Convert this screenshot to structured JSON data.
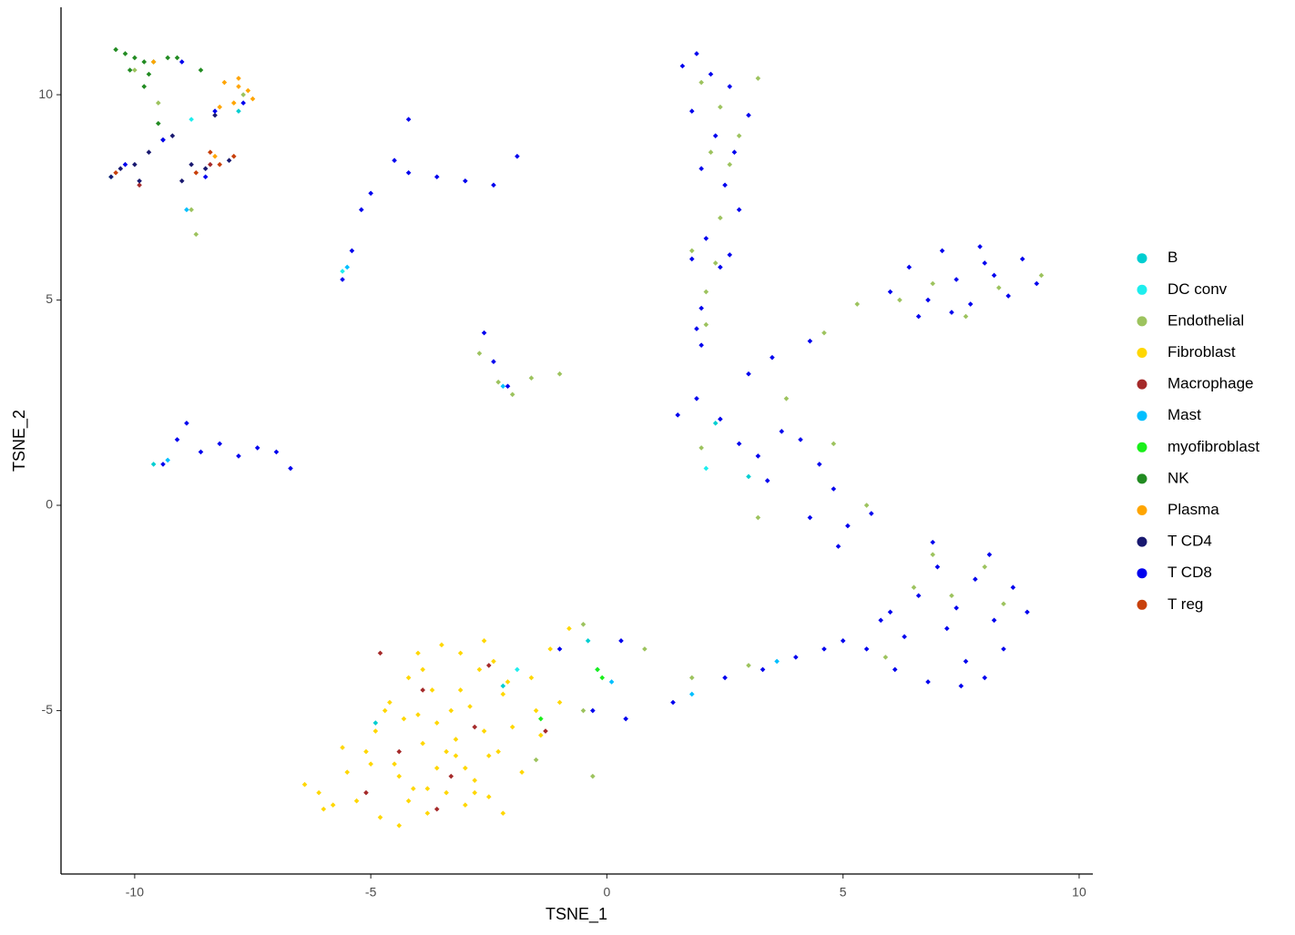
{
  "chart_data": {
    "type": "scatter",
    "x_label": "TSNE_1",
    "y_label": "TSNE_2",
    "xlim": [
      -11.56,
      10.29
    ],
    "ylim": [
      -8.98,
      12.13
    ],
    "xticks": [
      -10,
      -5,
      0,
      5,
      10
    ],
    "yticks": [
      -5,
      0,
      5,
      10
    ],
    "grid": false,
    "legend": "right",
    "series": [
      {
        "name": "B",
        "color": "#00CED1",
        "x": [
          -10.5,
          -9.6,
          -7.8,
          -0.4,
          3.0,
          -0.2,
          2.3,
          -2.2,
          -4.9
        ],
        "y": [
          8.0,
          1.0,
          9.6,
          -3.3,
          0.7,
          -4.0,
          2.0,
          -4.4,
          -5.3
        ]
      },
      {
        "name": "DC conv",
        "color": "#1EEEEE",
        "x": [
          -8.8,
          -1.9,
          2.1,
          -5.6
        ],
        "y": [
          9.4,
          -4.0,
          0.9,
          5.7
        ]
      },
      {
        "name": "Endothelial",
        "color": "#9DC35E",
        "x": [
          2.0,
          2.4,
          2.8,
          2.2,
          2.6,
          2.4,
          1.8,
          2.3,
          2.1,
          2.1,
          3.2,
          6.2,
          6.9,
          7.6,
          8.3,
          9.2,
          5.3,
          4.6,
          6.9,
          7.3,
          8.0,
          8.4,
          6.5,
          5.9,
          -2.7,
          -2.3,
          -2.0,
          -1.6,
          -1.0,
          1.8,
          3.0,
          0.8,
          -0.5,
          -1.5,
          -0.3,
          -0.5,
          -10.0,
          -9.5,
          -8.7,
          -8.8,
          -7.7,
          2.0,
          3.8,
          4.8,
          5.5,
          3.2
        ],
        "y": [
          10.3,
          9.7,
          9.0,
          8.6,
          8.3,
          7.0,
          6.2,
          5.9,
          5.2,
          4.4,
          10.4,
          5.0,
          5.4,
          4.6,
          5.3,
          5.6,
          4.9,
          4.2,
          -1.2,
          -2.2,
          -1.5,
          -2.4,
          -2.0,
          -3.7,
          3.7,
          3.0,
          2.7,
          3.1,
          3.2,
          -4.2,
          -3.9,
          -3.5,
          -5.0,
          -6.2,
          -6.6,
          -2.9,
          10.6,
          9.8,
          6.6,
          7.2,
          10.0,
          1.4,
          2.6,
          1.5,
          0.0,
          -0.3
        ]
      },
      {
        "name": "Fibroblast",
        "color": "#FFD700",
        "x": [
          -6.4,
          -6.1,
          -5.8,
          -5.5,
          -5.3,
          -5.1,
          -4.9,
          -4.8,
          -4.6,
          -4.5,
          -4.4,
          -4.3,
          -4.2,
          -4.1,
          -4.0,
          -3.9,
          -3.8,
          -3.7,
          -3.6,
          -3.5,
          -3.4,
          -3.3,
          -3.2,
          -3.1,
          -3.0,
          -2.9,
          -2.8,
          -2.7,
          -2.6,
          -2.5,
          -2.4,
          -2.3,
          -2.2,
          -2.0,
          -1.8,
          -1.6,
          -1.4,
          -1.2,
          -1.0,
          -0.8,
          -5.0,
          -4.7,
          -4.2,
          -3.9,
          -3.6,
          -3.4,
          -3.1,
          -2.8,
          -2.5,
          -2.1,
          -4.4,
          -3.8,
          -3.2,
          -2.6,
          -5.6,
          -6.0,
          -4.0,
          -3.0,
          -2.2,
          -1.5
        ],
        "y": [
          -6.8,
          -7.0,
          -7.3,
          -6.5,
          -7.2,
          -6.0,
          -5.5,
          -7.6,
          -4.8,
          -6.3,
          -7.8,
          -5.2,
          -4.2,
          -6.9,
          -3.6,
          -5.8,
          -7.5,
          -4.5,
          -6.4,
          -3.4,
          -7.0,
          -5.0,
          -6.1,
          -3.6,
          -7.3,
          -4.9,
          -6.7,
          -4.0,
          -5.5,
          -7.1,
          -3.8,
          -6.0,
          -4.6,
          -5.4,
          -6.5,
          -4.2,
          -5.6,
          -3.5,
          -4.8,
          -3.0,
          -6.3,
          -5.0,
          -7.2,
          -4.0,
          -5.3,
          -6.0,
          -4.5,
          -7.0,
          -6.1,
          -4.3,
          -6.6,
          -6.9,
          -5.7,
          -3.3,
          -5.9,
          -7.4,
          -5.1,
          -6.4,
          -7.5,
          -5.0
        ]
      },
      {
        "name": "Macrophage",
        "color": "#A52A2A",
        "x": [
          -5.1,
          -4.4,
          -3.9,
          -3.3,
          -2.8,
          -2.5,
          -4.8,
          -3.6,
          -1.3,
          -8.4,
          -9.9
        ],
        "y": [
          -7.0,
          -6.0,
          -4.5,
          -6.6,
          -5.4,
          -3.9,
          -3.6,
          -7.4,
          -5.5,
          8.3,
          7.8
        ]
      },
      {
        "name": "Mast",
        "color": "#00BFFF",
        "x": [
          -8.9,
          -5.5,
          -2.2,
          1.8,
          3.6,
          -9.3,
          0.1
        ],
        "y": [
          7.2,
          5.8,
          2.9,
          -4.6,
          -3.8,
          1.1,
          -4.3
        ]
      },
      {
        "name": "myofibroblast",
        "color": "#1AEF1A",
        "x": [
          -0.2,
          -0.1,
          -1.4
        ],
        "y": [
          -4.0,
          -4.2,
          -5.2
        ]
      },
      {
        "name": "NK",
        "color": "#228B22",
        "x": [
          -10.4,
          -10.2,
          -10.0,
          -9.8,
          -9.6,
          -9.3,
          -9.1,
          -10.1,
          -9.7,
          -8.6,
          -9.5,
          -9.8
        ],
        "y": [
          11.1,
          11.0,
          10.9,
          10.8,
          10.8,
          10.9,
          10.9,
          10.6,
          10.5,
          10.6,
          9.3,
          10.2
        ]
      },
      {
        "name": "Plasma",
        "color": "#FFA500",
        "x": [
          -8.1,
          -7.8,
          -7.6,
          -7.9,
          -8.2,
          -7.5,
          -9.6,
          -8.3,
          -7.8
        ],
        "y": [
          10.3,
          10.4,
          10.1,
          9.8,
          9.7,
          9.9,
          10.8,
          8.5,
          10.2
        ]
      },
      {
        "name": "T CD4",
        "color": "#191970",
        "x": [
          -10.5,
          -10.3,
          -10.0,
          -9.7,
          -9.4,
          -9.2,
          -8.8,
          -8.5,
          -8.0,
          -9.9,
          -8.3,
          -9.0
        ],
        "y": [
          8.0,
          8.2,
          8.3,
          8.6,
          8.9,
          9.0,
          8.3,
          8.2,
          8.4,
          7.9,
          9.5,
          7.9
        ]
      },
      {
        "name": "T CD8",
        "color": "#0000EE",
        "x": [
          1.6,
          1.9,
          2.2,
          2.6,
          3.0,
          1.8,
          2.3,
          2.7,
          2.0,
          2.5,
          2.8,
          2.1,
          1.8,
          2.4,
          2.6,
          2.0,
          2.0,
          1.9,
          6.0,
          6.4,
          6.8,
          7.1,
          7.4,
          7.7,
          7.9,
          8.2,
          8.5,
          8.8,
          9.1,
          6.6,
          7.3,
          8.0,
          5.5,
          5.8,
          6.1,
          6.3,
          6.6,
          6.8,
          7.0,
          7.2,
          7.4,
          7.6,
          7.8,
          8.0,
          8.2,
          8.4,
          8.6,
          8.9,
          6.9,
          7.5,
          6.0,
          8.1,
          1.5,
          1.9,
          2.4,
          2.8,
          3.2,
          3.4,
          3.7,
          4.1,
          4.5,
          4.8,
          5.1,
          4.9,
          5.6,
          4.3,
          3.5,
          4.3,
          3.0,
          0.4,
          1.4,
          2.5,
          3.3,
          4.0,
          4.6,
          5.0,
          0.3,
          -0.3,
          -1.0,
          -9.4,
          -9.1,
          -8.9,
          -8.6,
          -8.2,
          -7.8,
          -7.4,
          -7.0,
          -6.7,
          -5.6,
          -5.4,
          -5.2,
          -5.0,
          -4.5,
          -4.2,
          -3.6,
          -3.0,
          -2.4,
          -1.9,
          -4.2,
          -2.6,
          -2.4,
          -2.1,
          -10.2,
          -9.4,
          -8.5,
          -8.3,
          -7.7,
          -9.0
        ],
        "y": [
          10.7,
          11.0,
          10.5,
          10.2,
          9.5,
          9.6,
          9.0,
          8.6,
          8.2,
          7.8,
          7.2,
          6.5,
          6.0,
          5.8,
          6.1,
          4.8,
          3.9,
          4.3,
          5.2,
          5.8,
          5.0,
          6.2,
          5.5,
          4.9,
          6.3,
          5.6,
          5.1,
          6.0,
          5.4,
          4.6,
          4.7,
          5.9,
          -3.5,
          -2.8,
          -4.0,
          -3.2,
          -2.2,
          -4.3,
          -1.5,
          -3.0,
          -2.5,
          -3.8,
          -1.8,
          -4.2,
          -2.8,
          -3.5,
          -2.0,
          -2.6,
          -0.9,
          -4.4,
          -2.6,
          -1.2,
          2.2,
          2.6,
          2.1,
          1.5,
          1.2,
          0.6,
          1.8,
          1.6,
          1.0,
          0.4,
          -0.5,
          -1.0,
          -0.2,
          -0.3,
          3.6,
          4.0,
          3.2,
          -5.2,
          -4.8,
          -4.2,
          -4.0,
          -3.7,
          -3.5,
          -3.3,
          -3.3,
          -5.0,
          -3.5,
          1.0,
          1.6,
          2.0,
          1.3,
          1.5,
          1.2,
          1.4,
          1.3,
          0.9,
          5.5,
          6.2,
          7.2,
          7.6,
          8.4,
          8.1,
          8.0,
          7.9,
          7.8,
          8.5,
          9.4,
          4.2,
          3.5,
          2.9,
          8.3,
          8.9,
          8.0,
          9.6,
          9.8,
          10.8
        ]
      },
      {
        "name": "T reg",
        "color": "#C8400B",
        "x": [
          -8.4,
          -8.2,
          -8.7,
          -7.9,
          -10.4
        ],
        "y": [
          8.6,
          8.3,
          8.1,
          8.5,
          8.1
        ]
      }
    ]
  }
}
